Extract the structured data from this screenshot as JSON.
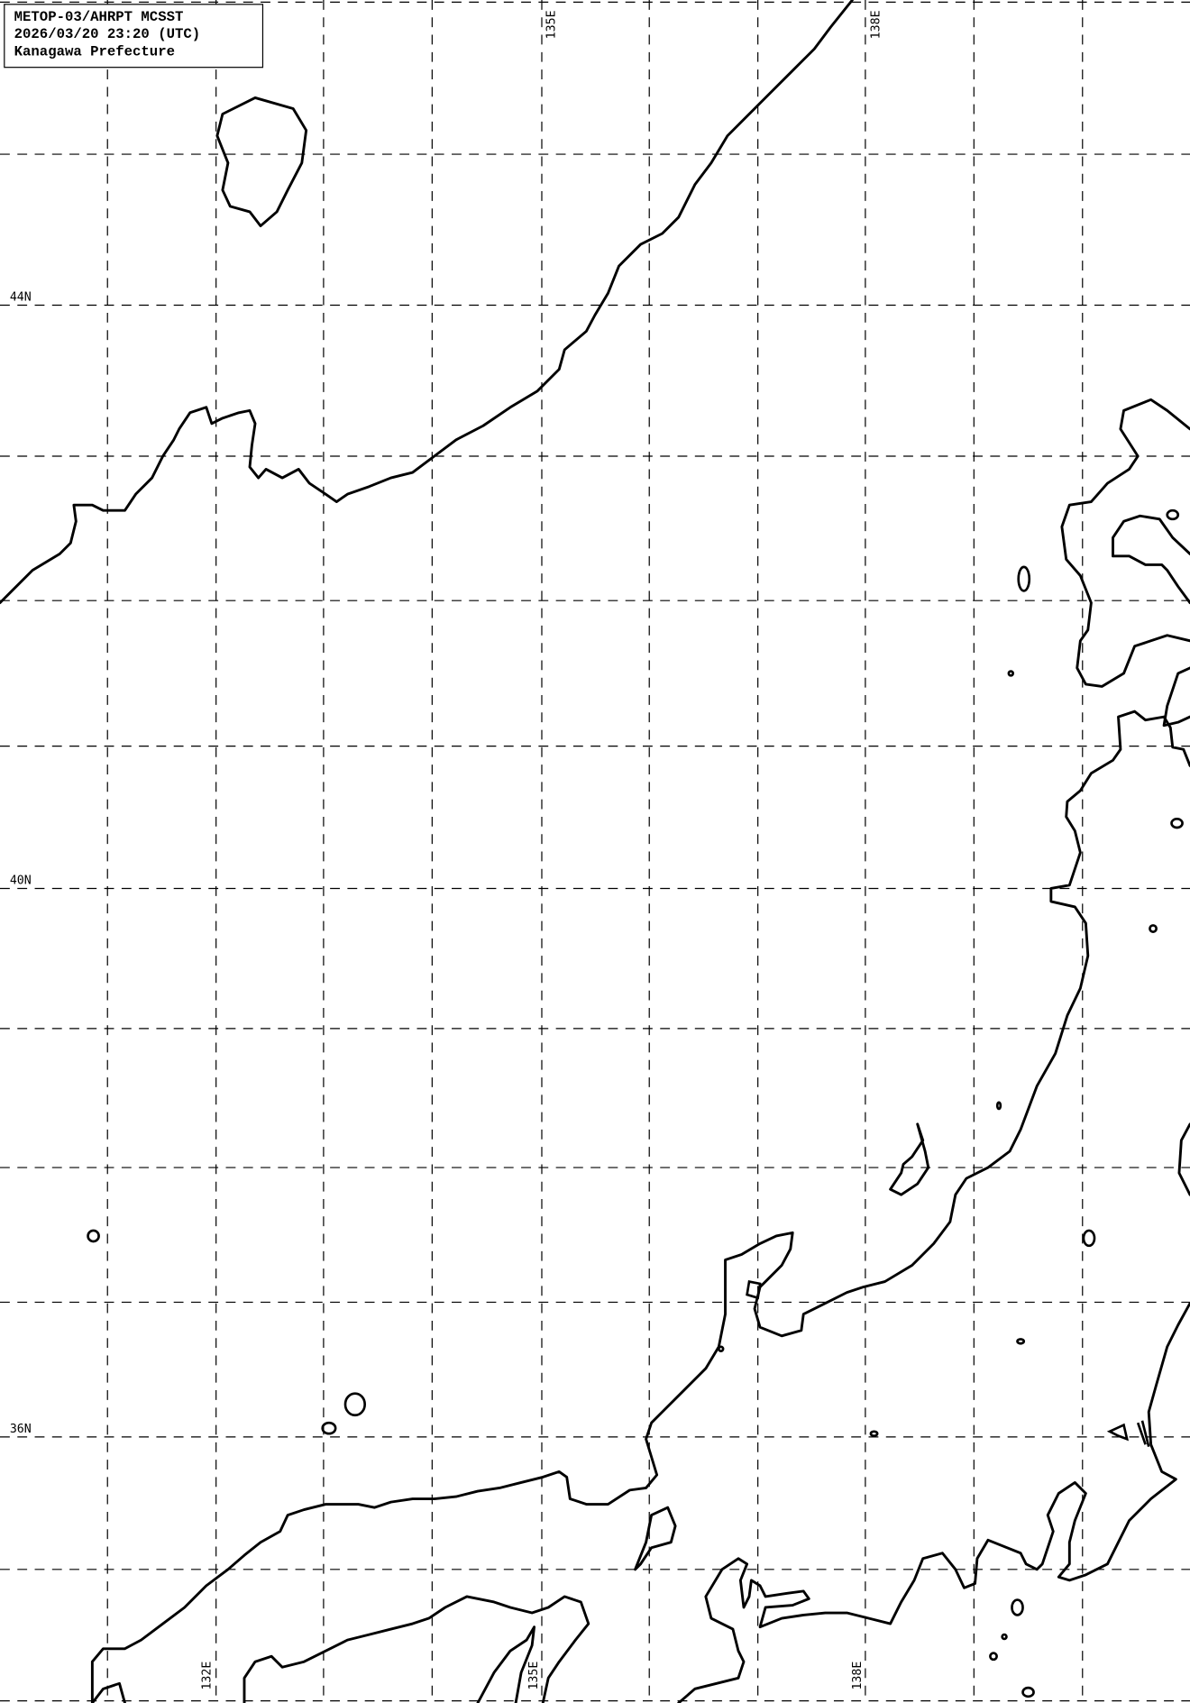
{
  "info_box": {
    "line1": "METOP-03/AHRPT MCSST",
    "line2": "2026/03/20 23:20 (UTC)",
    "line3": "Kanagawa Prefecture"
  },
  "lat_labels": {
    "n44": "44N",
    "n40": "40N",
    "n36": "36N"
  },
  "lon_labels_top": {
    "e135": "135E",
    "e138": "138E"
  },
  "lon_labels_bottom": {
    "e132": "132E",
    "e135": "135E",
    "e138": "138E"
  },
  "colors": {
    "background": "#ffffff",
    "lines": "#000000"
  }
}
